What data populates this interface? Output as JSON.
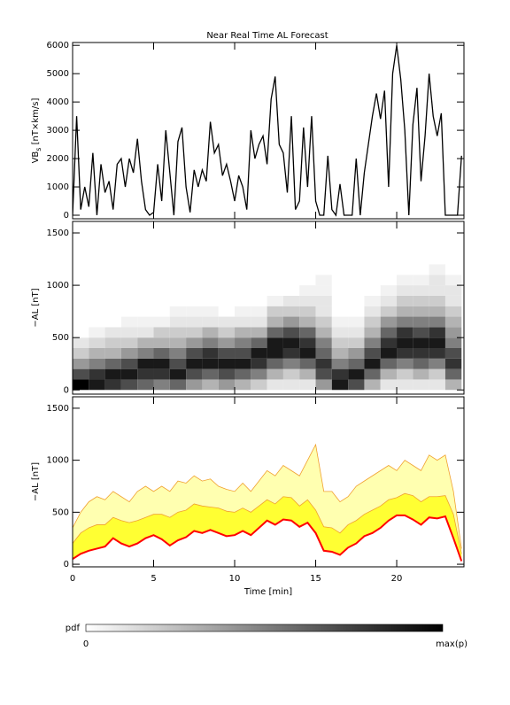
{
  "title": "Near Real Time AL Forecast",
  "chart_data": [
    {
      "type": "line",
      "ylabel": {
        "main": "VB",
        "sub": "s",
        "unit": "[nT×km/s]"
      },
      "xlim": [
        0,
        24.15
      ],
      "xticks": [
        0,
        5,
        10,
        15,
        20
      ],
      "show_xtick_labels": false,
      "ylim": [
        -125,
        6100
      ],
      "yticks": [
        0,
        1000,
        2000,
        3000,
        4000,
        5000,
        6000
      ],
      "x": [
        0,
        0.25,
        0.5,
        0.75,
        1,
        1.25,
        1.5,
        1.75,
        2,
        2.25,
        2.5,
        2.75,
        3,
        3.25,
        3.5,
        3.75,
        4,
        4.25,
        4.5,
        4.75,
        5,
        5.25,
        5.5,
        5.75,
        6,
        6.25,
        6.5,
        6.75,
        7,
        7.25,
        7.5,
        7.75,
        8,
        8.25,
        8.5,
        8.75,
        9,
        9.25,
        9.5,
        9.75,
        10,
        10.25,
        10.5,
        10.75,
        11,
        11.25,
        11.5,
        11.75,
        12,
        12.25,
        12.5,
        12.75,
        13,
        13.25,
        13.5,
        13.75,
        14,
        14.25,
        14.5,
        14.75,
        15,
        15.25,
        15.5,
        15.75,
        16,
        16.25,
        16.5,
        16.75,
        17,
        17.25,
        17.5,
        17.75,
        18,
        18.25,
        18.5,
        18.75,
        19,
        19.25,
        19.5,
        19.75,
        20,
        20.25,
        20.5,
        20.75,
        21,
        21.25,
        21.5,
        21.75,
        22,
        22.25,
        22.5,
        22.75,
        23,
        23.25,
        23.5,
        23.75,
        24
      ],
      "series": [
        {
          "color": "#000000",
          "values": [
            0,
            3500,
            200,
            1000,
            300,
            2200,
            0,
            1800,
            800,
            1200,
            200,
            1800,
            2000,
            1000,
            2000,
            1500,
            2700,
            1200,
            200,
            0,
            100,
            1800,
            500,
            3000,
            1500,
            0,
            2600,
            3100,
            1000,
            100,
            1600,
            1000,
            1600,
            1200,
            3300,
            2200,
            2500,
            1400,
            1800,
            1200,
            500,
            1400,
            1000,
            200,
            3000,
            2000,
            2500,
            2800,
            1800,
            4100,
            4900,
            2500,
            2200,
            800,
            3500,
            200,
            500,
            3100,
            1000,
            3500,
            500,
            0,
            0,
            2100,
            200,
            0,
            1100,
            0,
            0,
            0,
            2000,
            0,
            1500,
            2500,
            3500,
            4300,
            3400,
            4400,
            1000,
            5000,
            6000,
            4800,
            3000,
            0,
            3200,
            4500,
            1200,
            2800,
            5000,
            3500,
            2800,
            3600,
            0,
            0,
            0,
            0,
            2100
          ]
        }
      ]
    },
    {
      "type": "heatmap",
      "ylabel": {
        "main": "−AL [nT]"
      },
      "xlim": [
        0,
        24.15
      ],
      "xticks": [
        0,
        5,
        10,
        15,
        20
      ],
      "show_xtick_labels": false,
      "ylim": [
        -40,
        1610
      ],
      "yticks": [
        0,
        500,
        1000,
        1500
      ],
      "x_bins": [
        0,
        1,
        2,
        3,
        4,
        5,
        6,
        7,
        8,
        9,
        10,
        11,
        12,
        13,
        14,
        15,
        16,
        17,
        18,
        19,
        20,
        21,
        22,
        23,
        24
      ],
      "y_bins": [
        0,
        100,
        200,
        300,
        400,
        500,
        600,
        700,
        800,
        900,
        1000,
        1100,
        1200
      ],
      "values": [
        [
          1,
          0.7,
          0.4,
          0.2,
          0.1,
          0,
          0,
          0,
          0,
          0,
          0,
          0
        ],
        [
          0.9,
          0.8,
          0.5,
          0.3,
          0.15,
          0.05,
          0,
          0,
          0,
          0,
          0,
          0
        ],
        [
          0.8,
          0.9,
          0.6,
          0.3,
          0.2,
          0.1,
          0,
          0,
          0,
          0,
          0,
          0
        ],
        [
          0.7,
          0.9,
          0.7,
          0.4,
          0.2,
          0.1,
          0.05,
          0,
          0,
          0,
          0,
          0
        ],
        [
          0.6,
          0.8,
          0.9,
          0.5,
          0.3,
          0.1,
          0.05,
          0,
          0,
          0,
          0,
          0
        ],
        [
          0.5,
          0.8,
          0.9,
          0.6,
          0.3,
          0.2,
          0.05,
          0,
          0,
          0,
          0,
          0
        ],
        [
          0.6,
          0.9,
          0.7,
          0.5,
          0.3,
          0.2,
          0.1,
          0.05,
          0,
          0,
          0,
          0
        ],
        [
          0.4,
          0.7,
          0.9,
          0.7,
          0.4,
          0.2,
          0.1,
          0.05,
          0,
          0,
          0,
          0
        ],
        [
          0.3,
          0.6,
          0.9,
          0.8,
          0.5,
          0.3,
          0.1,
          0.05,
          0,
          0,
          0,
          0
        ],
        [
          0.4,
          0.7,
          0.9,
          0.7,
          0.4,
          0.2,
          0.1,
          0,
          0,
          0,
          0,
          0
        ],
        [
          0.3,
          0.6,
          0.9,
          0.7,
          0.5,
          0.3,
          0.1,
          0.05,
          0,
          0,
          0,
          0
        ],
        [
          0.2,
          0.5,
          0.8,
          0.9,
          0.6,
          0.3,
          0.1,
          0.05,
          0,
          0,
          0,
          0
        ],
        [
          0.1,
          0.3,
          0.6,
          0.9,
          0.9,
          0.6,
          0.3,
          0.2,
          0.05,
          0,
          0,
          0
        ],
        [
          0.1,
          0.2,
          0.5,
          0.8,
          0.9,
          0.7,
          0.4,
          0.2,
          0.1,
          0,
          0,
          0
        ],
        [
          0.1,
          0.3,
          0.6,
          0.9,
          0.8,
          0.6,
          0.3,
          0.2,
          0.1,
          0.05,
          0,
          0
        ],
        [
          0.4,
          0.7,
          0.8,
          0.6,
          0.5,
          0.3,
          0.2,
          0.1,
          0.1,
          0.05,
          0.05,
          0
        ],
        [
          0.9,
          0.8,
          0.5,
          0.3,
          0.2,
          0.1,
          0.05,
          0,
          0,
          0,
          0,
          0
        ],
        [
          0.7,
          0.9,
          0.6,
          0.4,
          0.2,
          0.1,
          0.05,
          0,
          0,
          0,
          0,
          0
        ],
        [
          0.3,
          0.6,
          0.9,
          0.7,
          0.5,
          0.3,
          0.2,
          0.1,
          0.05,
          0,
          0,
          0
        ],
        [
          0.1,
          0.3,
          0.6,
          0.9,
          0.8,
          0.6,
          0.4,
          0.2,
          0.1,
          0.05,
          0,
          0
        ],
        [
          0.1,
          0.2,
          0.5,
          0.8,
          0.9,
          0.8,
          0.5,
          0.3,
          0.2,
          0.1,
          0.05,
          0
        ],
        [
          0.1,
          0.3,
          0.6,
          0.8,
          0.9,
          0.7,
          0.5,
          0.3,
          0.2,
          0.1,
          0.05,
          0
        ],
        [
          0.1,
          0.2,
          0.5,
          0.8,
          0.9,
          0.8,
          0.5,
          0.3,
          0.2,
          0.1,
          0.1,
          0.05
        ],
        [
          0.3,
          0.6,
          0.8,
          0.7,
          0.5,
          0.4,
          0.3,
          0.2,
          0.1,
          0.1,
          0.05,
          0
        ]
      ],
      "colorbar": {
        "label": "pdf",
        "min_label": "0",
        "max_label": "max(p)"
      }
    },
    {
      "type": "band",
      "ylabel": {
        "main": "−AL [nT]"
      },
      "xlabel": "Time [min]",
      "xlim": [
        0,
        24.15
      ],
      "xticks": [
        0,
        5,
        10,
        15,
        20
      ],
      "show_xtick_labels": true,
      "ylim": [
        -25,
        1610
      ],
      "yticks": [
        0,
        500,
        1000,
        1500
      ],
      "x": [
        0,
        0.5,
        1,
        1.5,
        2,
        2.5,
        3,
        3.5,
        4,
        4.5,
        5,
        5.5,
        6,
        6.5,
        7,
        7.5,
        8,
        8.5,
        9,
        9.5,
        10,
        10.5,
        11,
        11.5,
        12,
        12.5,
        13,
        13.5,
        14,
        14.5,
        15,
        15.5,
        16,
        16.5,
        17,
        17.5,
        18,
        18.5,
        19,
        19.5,
        20,
        20.5,
        21,
        21.5,
        22,
        22.5,
        23,
        23.5,
        24
      ],
      "series": [
        {
          "color": "#ff0000",
          "values": [
            50,
            100,
            130,
            150,
            170,
            250,
            200,
            170,
            200,
            250,
            280,
            240,
            180,
            230,
            260,
            320,
            300,
            330,
            300,
            270,
            280,
            320,
            280,
            350,
            420,
            380,
            430,
            420,
            360,
            400,
            300,
            130,
            120,
            90,
            160,
            200,
            270,
            300,
            350,
            420,
            470,
            470,
            430,
            380,
            450,
            440,
            460,
            250,
            30
          ]
        },
        {
          "color": "#ffff33",
          "values": [
            200,
            300,
            350,
            380,
            380,
            450,
            420,
            400,
            420,
            450,
            480,
            480,
            450,
            500,
            520,
            580,
            560,
            550,
            540,
            510,
            500,
            540,
            500,
            560,
            620,
            580,
            650,
            640,
            560,
            620,
            520,
            360,
            350,
            300,
            380,
            420,
            480,
            520,
            560,
            620,
            640,
            680,
            660,
            600,
            650,
            650,
            660,
            480,
            100
          ]
        },
        {
          "color": "#ffffb0",
          "values": [
            350,
            500,
            600,
            650,
            620,
            700,
            650,
            600,
            700,
            750,
            700,
            750,
            700,
            800,
            780,
            850,
            800,
            820,
            750,
            720,
            700,
            780,
            700,
            800,
            900,
            850,
            950,
            900,
            850,
            1000,
            1150,
            700,
            700,
            600,
            650,
            750,
            800,
            850,
            900,
            950,
            900,
            1000,
            950,
            900,
            1050,
            1000,
            1050,
            700,
            150
          ]
        }
      ]
    }
  ]
}
